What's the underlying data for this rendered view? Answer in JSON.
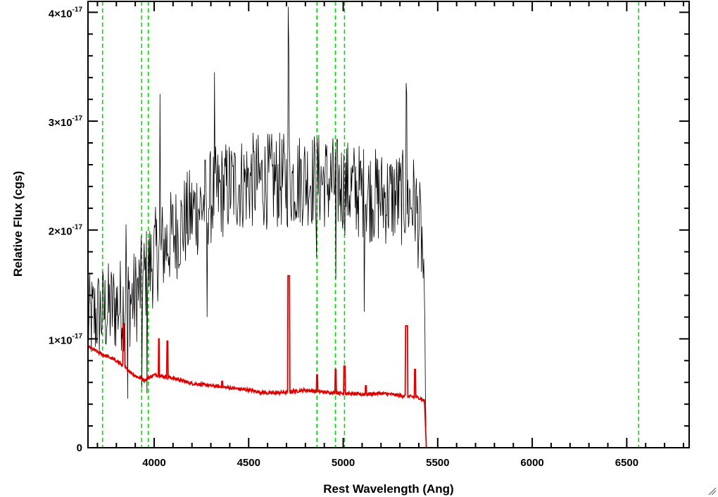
{
  "chart_data": {
    "type": "line",
    "xlabel": "Rest Wavelength (Ang)",
    "ylabel": "Relative Flux (cgs)",
    "xlim": [
      3650,
      6830
    ],
    "ylim": [
      0,
      4.1e-17
    ],
    "x_ticks": [
      4000,
      4500,
      5000,
      5500,
      6000,
      6500
    ],
    "x_tick_labels": [
      "4000",
      "4500",
      "5000",
      "5500",
      "6000",
      "6500"
    ],
    "x_minor_step": 100,
    "y_ticks": [
      {
        "value": 0,
        "label": "0"
      },
      {
        "value": 1e-17,
        "base": "1×10",
        "exp": "-17"
      },
      {
        "value": 2e-17,
        "base": "2×10",
        "exp": "-17"
      },
      {
        "value": 3e-17,
        "base": "3×10",
        "exp": "-17"
      },
      {
        "value": 4e-17,
        "base": "4×10",
        "exp": "-17"
      }
    ],
    "y_minor_step": 2e-18,
    "grid": false,
    "vertical_lines": {
      "color": "#00dd00",
      "style": "dashed",
      "x": [
        3727,
        3934,
        3969,
        4861,
        4959,
        5007,
        6563
      ]
    },
    "series": [
      {
        "color": "#000000",
        "kind": "observed_spectrum",
        "x_start": 3650,
        "x_end": 5440,
        "x_step": 3,
        "envelope": [
          [
            3650,
            1.15e-17
          ],
          [
            3700,
            1.22e-17
          ],
          [
            3800,
            1.3e-17
          ],
          [
            3900,
            1.38e-17
          ],
          [
            4000,
            1.75e-17
          ],
          [
            4100,
            1.95e-17
          ],
          [
            4200,
            2.15e-17
          ],
          [
            4300,
            2.3e-17
          ],
          [
            4400,
            2.4e-17
          ],
          [
            4500,
            2.45e-17
          ],
          [
            4600,
            2.45e-17
          ],
          [
            4700,
            2.45e-17
          ],
          [
            4800,
            2.48e-17
          ],
          [
            4900,
            2.45e-17
          ],
          [
            5000,
            2.4e-17
          ],
          [
            5100,
            2.35e-17
          ],
          [
            5200,
            2.3e-17
          ],
          [
            5300,
            2.3e-17
          ],
          [
            5380,
            2.25e-17
          ],
          [
            5420,
            1.85e-17
          ],
          [
            5440,
            0
          ]
        ],
        "noise_amplitude": 4.5e-18,
        "spikes": [
          [
            4320,
            3.45e-17
          ],
          [
            4710,
            4.05e-17
          ],
          [
            4713,
            3.7e-17
          ],
          [
            5333,
            3.35e-17
          ],
          [
            5336,
            3.25e-17
          ],
          [
            3850,
            2.05e-17
          ],
          [
            4030,
            3.25e-17
          ]
        ],
        "dips": [
          [
            3860,
            4.5e-18
          ],
          [
            3935,
            5.5e-18
          ],
          [
            3962,
            5e-18
          ],
          [
            4860,
            1.75e-17
          ],
          [
            4960,
            1.55e-17
          ],
          [
            4280,
            1.2e-17
          ],
          [
            5110,
            1.25e-17
          ]
        ]
      },
      {
        "color": "#dd0000",
        "kind": "model_spectrum",
        "continuum": [
          [
            3650,
            9.3e-18
          ],
          [
            3700,
            8.8e-18
          ],
          [
            3800,
            8e-18
          ],
          [
            3900,
            6.6e-18
          ],
          [
            3950,
            6.2e-18
          ],
          [
            4000,
            6.7e-18
          ],
          [
            4100,
            6.4e-18
          ],
          [
            4200,
            5.9e-18
          ],
          [
            4300,
            5.7e-18
          ],
          [
            4400,
            5.5e-18
          ],
          [
            4500,
            5.3e-18
          ],
          [
            4600,
            5e-18
          ],
          [
            4700,
            5.1e-18
          ],
          [
            4800,
            5.3e-18
          ],
          [
            4900,
            5.1e-18
          ],
          [
            5000,
            5e-18
          ],
          [
            5100,
            4.9e-18
          ],
          [
            5200,
            5e-18
          ],
          [
            5300,
            4.8e-18
          ],
          [
            5400,
            4.6e-18
          ],
          [
            5430,
            4.3e-18
          ],
          [
            5440,
            0
          ],
          [
            6830,
            0
          ]
        ],
        "lines": [
          [
            3840,
            1.13e-17,
            8
          ],
          [
            4025,
            1e-17,
            4
          ],
          [
            4070,
            9.8e-18,
            4
          ],
          [
            4712,
            1.58e-17,
            8
          ],
          [
            4862,
            6.7e-18,
            6
          ],
          [
            4960,
            7.2e-18,
            6
          ],
          [
            5007,
            7.5e-18,
            6
          ],
          [
            5335,
            1.12e-17,
            10
          ],
          [
            5380,
            7.2e-18,
            6
          ],
          [
            4360,
            6.1e-18,
            5
          ],
          [
            5120,
            5.7e-18,
            5
          ]
        ]
      }
    ]
  }
}
